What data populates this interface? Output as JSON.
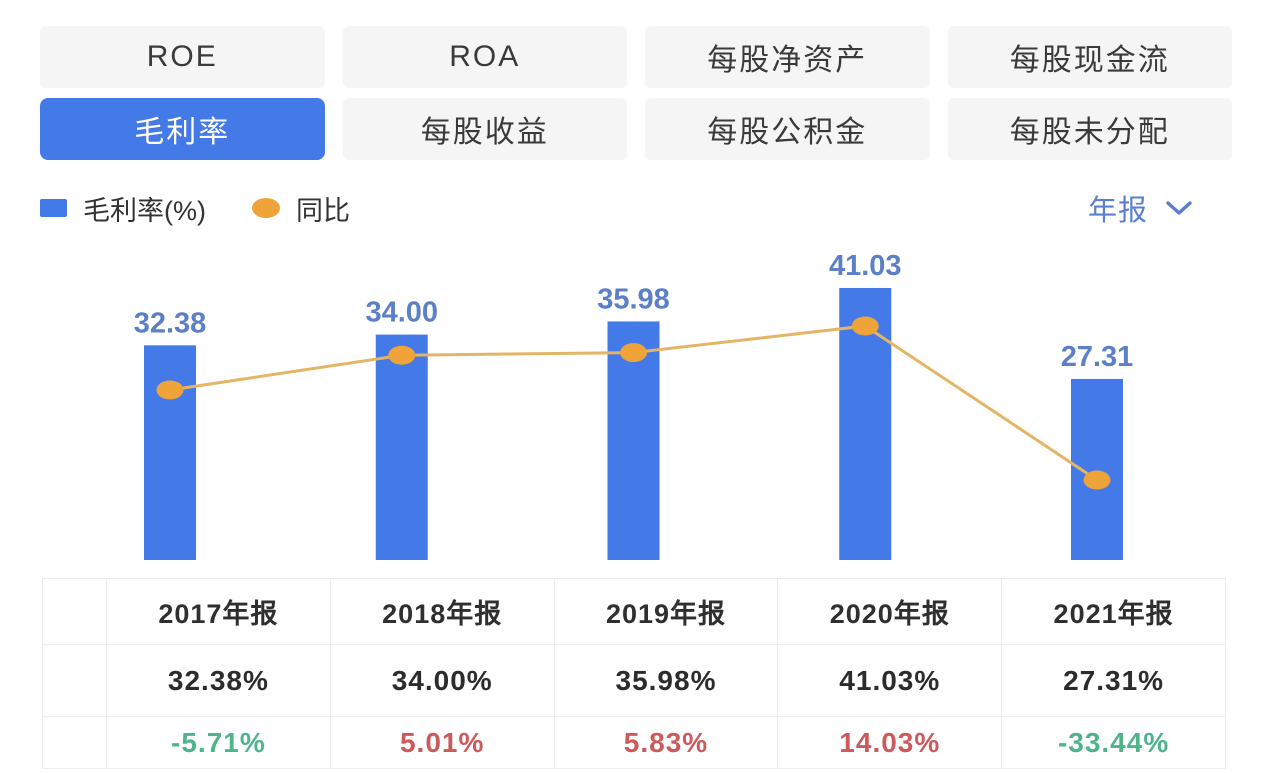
{
  "tabs": {
    "active_index": 4,
    "items": [
      {
        "label": "ROE"
      },
      {
        "label": "ROA"
      },
      {
        "label": "每股净资产"
      },
      {
        "label": "每股现金流"
      },
      {
        "label": "毛利率"
      },
      {
        "label": "每股收益"
      },
      {
        "label": "每股公积金"
      },
      {
        "label": "每股未分配"
      }
    ]
  },
  "legend": {
    "bar_label": "毛利率(%)",
    "line_label": "同比"
  },
  "period_selector": {
    "label": "年报"
  },
  "colors": {
    "bar": "#4479e8",
    "line": "#e4b564",
    "dot": "#efa43a",
    "bar_value_label": "#5b80c7",
    "period_text": "#5b7fd0",
    "positive": "#cc5a5c",
    "negative": "#4eb48a",
    "active_tab_bg": "#4479e8",
    "tab_bg": "#f5f5f6"
  },
  "chart_data": {
    "type": "bar",
    "categories": [
      "2017年报",
      "2018年报",
      "2019年报",
      "2020年报",
      "2021年报"
    ],
    "series": [
      {
        "name": "毛利率(%)",
        "type": "bar",
        "values": [
          32.38,
          34.0,
          35.98,
          41.03,
          27.31
        ],
        "labels": [
          "32.38",
          "34.00",
          "35.98",
          "41.03",
          "27.31"
        ]
      },
      {
        "name": "同比",
        "type": "line",
        "values": [
          -5.71,
          5.01,
          5.83,
          14.03,
          -33.44
        ]
      }
    ],
    "ylim_bar": [
      0,
      45
    ],
    "grid": false,
    "axes_visible": false,
    "legend_position": "top-left",
    "title": ""
  },
  "table": {
    "headers": [
      "2017年报",
      "2018年报",
      "2019年报",
      "2020年报",
      "2021年报"
    ],
    "rows": [
      {
        "icon": "bar-series-swatch",
        "values": [
          "32.38%",
          "34.00%",
          "35.98%",
          "41.03%",
          "27.31%"
        ],
        "colors": [
          "#2c2c2c",
          "#2c2c2c",
          "#2c2c2c",
          "#2c2c2c",
          "#2c2c2c"
        ]
      },
      {
        "icon": "line-series-swatch",
        "values": [
          "-5.71%",
          "5.01%",
          "5.83%",
          "14.03%",
          "-33.44%"
        ],
        "colors": [
          "#4eb48a",
          "#cc5a5c",
          "#cc5a5c",
          "#cc5a5c",
          "#4eb48a"
        ]
      }
    ]
  }
}
